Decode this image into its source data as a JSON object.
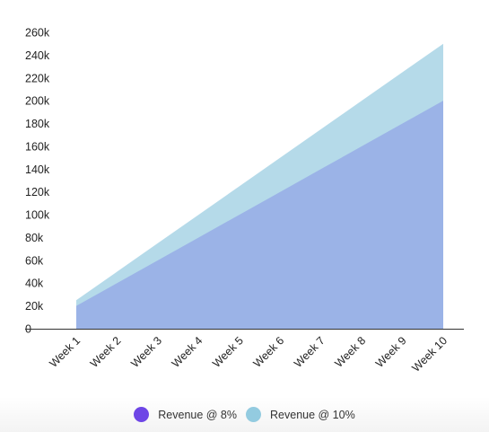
{
  "chart_data": {
    "type": "area",
    "stacked": false,
    "categories": [
      "Week 1",
      "Week 2",
      "Week 3",
      "Week 4",
      "Week 5",
      "Week 6",
      "Week 7",
      "Week 8",
      "Week 9",
      "Week 10"
    ],
    "yticks": [
      "260k",
      "240k",
      "220k",
      "200k",
      "180k",
      "160k",
      "140k",
      "120k",
      "100k",
      "80k",
      "60k",
      "40k",
      "20k",
      "0"
    ],
    "ylim": [
      0,
      260000
    ],
    "series": [
      {
        "name": "Revenue @ 10%",
        "color": "#b5dae9",
        "values": [
          25000,
          50000,
          75000,
          100000,
          125000,
          150000,
          175000,
          200000,
          225000,
          250000
        ]
      },
      {
        "name": "Revenue @ 8%",
        "color": "#9bb3e7",
        "values": [
          20000,
          40000,
          60000,
          80000,
          100000,
          120000,
          140000,
          160000,
          180000,
          200000
        ]
      }
    ],
    "legend": {
      "position": "bottom",
      "items": [
        {
          "label": "Revenue @ 8%",
          "color": "#6e46e6"
        },
        {
          "label": "Revenue @ 10%",
          "color": "#93cbe0"
        }
      ]
    },
    "grid": false,
    "xlabel": "",
    "ylabel": "",
    "title": ""
  }
}
